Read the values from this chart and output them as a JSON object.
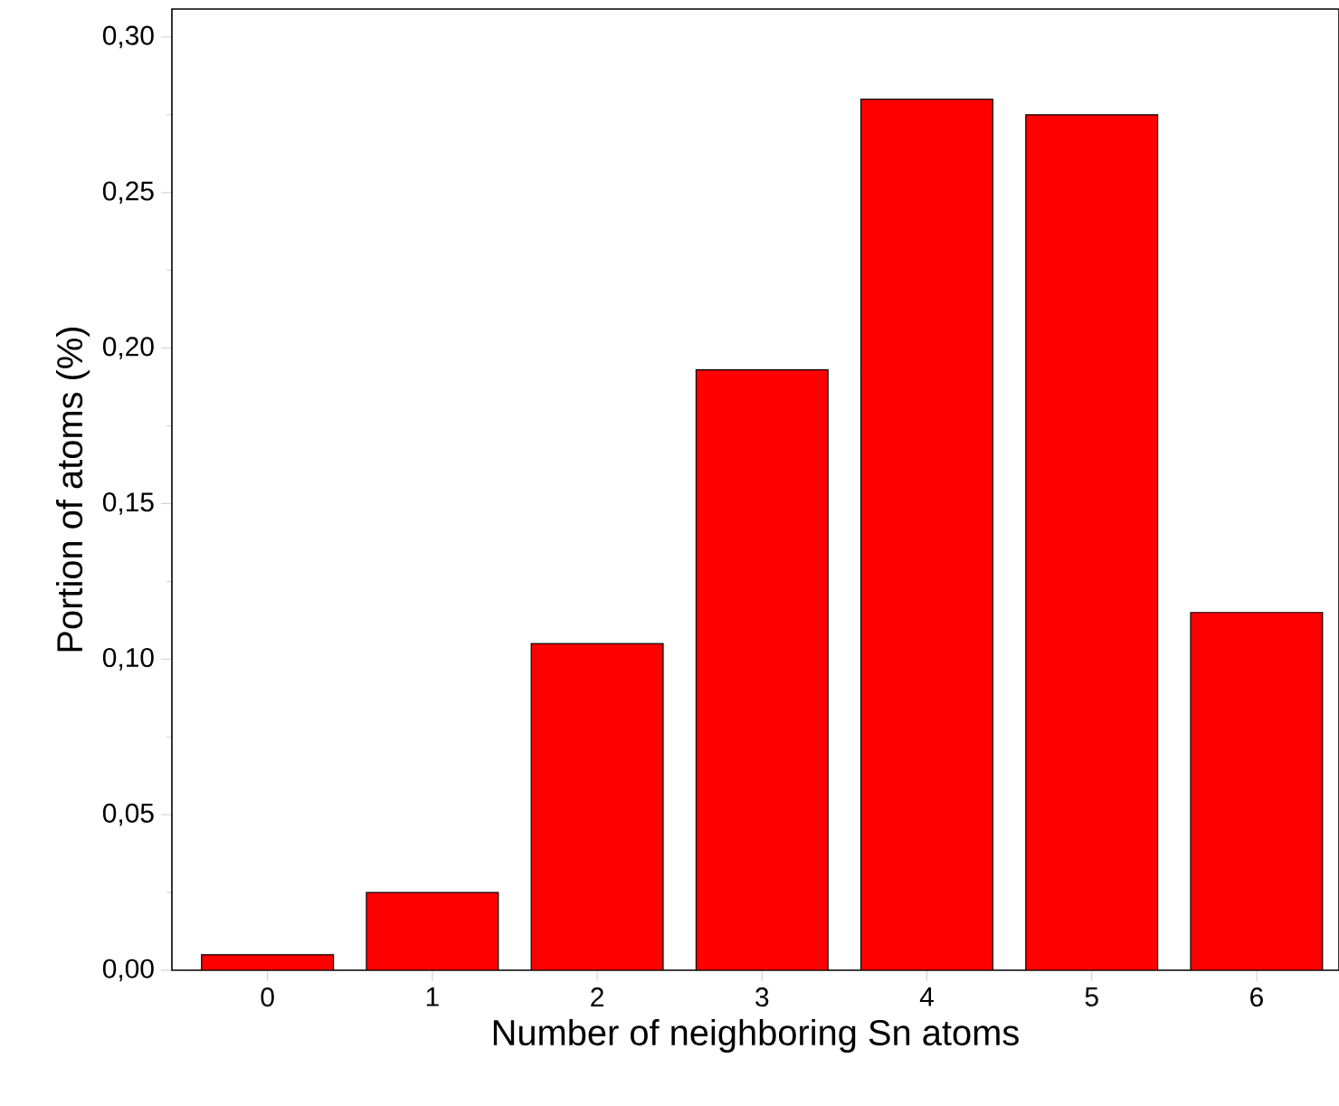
{
  "chart_data": {
    "type": "bar",
    "xlabel": "Number of neighboring Sn atoms",
    "ylabel": "Portion of atoms (%)",
    "categories": [
      "0",
      "1",
      "2",
      "3",
      "4",
      "5",
      "6"
    ],
    "values": [
      0.005,
      0.025,
      0.105,
      0.193,
      0.28,
      0.275,
      0.115
    ],
    "color": "#ff0000",
    "ylim": [
      0,
      0.309
    ],
    "yticks": [
      {
        "value": 0,
        "label": "0,00"
      },
      {
        "value": 0.025,
        "label": null
      },
      {
        "value": 0.05,
        "label": "0,05"
      },
      {
        "value": 0.075,
        "label": null
      },
      {
        "value": 0.1,
        "label": "0,10"
      },
      {
        "value": 0.125,
        "label": null
      },
      {
        "value": 0.15,
        "label": "0,15"
      },
      {
        "value": 0.175,
        "label": null
      },
      {
        "value": 0.2,
        "label": "0,20"
      },
      {
        "value": 0.225,
        "label": null
      },
      {
        "value": 0.25,
        "label": "0,25"
      },
      {
        "value": 0.275,
        "label": null
      },
      {
        "value": 0.3,
        "label": "0,30"
      }
    ]
  }
}
